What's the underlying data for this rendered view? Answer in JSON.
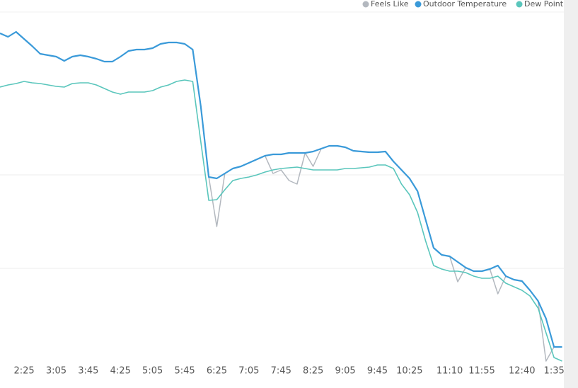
{
  "chart_data": {
    "type": "line",
    "categories": [
      null,
      null,
      null,
      "2:25",
      null,
      null,
      null,
      "3:05",
      null,
      null,
      null,
      "3:45",
      null,
      null,
      null,
      "4:25",
      null,
      null,
      null,
      "5:05",
      null,
      null,
      null,
      "5:45",
      null,
      null,
      null,
      "6:25",
      null,
      null,
      null,
      "7:05",
      null,
      null,
      null,
      "7:45",
      null,
      null,
      null,
      "8:25",
      null,
      null,
      null,
      "9:05",
      null,
      null,
      null,
      "9:45",
      null,
      null,
      null,
      "10:25",
      null,
      null,
      null,
      null,
      "11:10",
      null,
      null,
      null,
      "11:55",
      null,
      null,
      null,
      null,
      "12:40",
      null,
      null,
      null,
      "1:35",
      null
    ],
    "series": [
      {
        "name": "Feels Like",
        "color": "#b3b8bf",
        "values": [
          46.3,
          45.8,
          46.5,
          45.5,
          44.5,
          43.4,
          43.2,
          43.0,
          42.4,
          43.0,
          43.2,
          43.0,
          42.7,
          42.3,
          42.3,
          43.0,
          43.8,
          44.0,
          44.0,
          44.2,
          44.8,
          45.0,
          45.0,
          44.8,
          44.0,
          36.0,
          26.0,
          19.0,
          26.5,
          27.2,
          27.5,
          28.0,
          28.5,
          29.0,
          26.5,
          27.0,
          25.5,
          25.0,
          29.4,
          27.5,
          30.0,
          30.4,
          30.4,
          30.2,
          29.7,
          29.6,
          29.5,
          29.5,
          29.6,
          28.2,
          27.0,
          25.8,
          24.0,
          20.0,
          16.0,
          15.0,
          14.8,
          11.2,
          13.2,
          12.7,
          12.7,
          13.0,
          9.5,
          12.0,
          11.5,
          11.3,
          10.0,
          8.5,
          0.0,
          2.0,
          2.0
        ]
      },
      {
        "name": "Outdoor Temperature",
        "color": "#3a9ad9",
        "values": [
          46.3,
          45.8,
          46.5,
          45.5,
          44.5,
          43.4,
          43.2,
          43.0,
          42.4,
          43.0,
          43.2,
          43.0,
          42.7,
          42.3,
          42.3,
          43.0,
          43.8,
          44.0,
          44.0,
          44.2,
          44.8,
          45.0,
          45.0,
          44.8,
          44.0,
          36.0,
          26.0,
          25.8,
          26.5,
          27.2,
          27.5,
          28.0,
          28.5,
          29.0,
          29.2,
          29.2,
          29.4,
          29.4,
          29.4,
          29.6,
          30.0,
          30.4,
          30.4,
          30.2,
          29.7,
          29.6,
          29.5,
          29.5,
          29.6,
          28.2,
          27.0,
          25.8,
          24.0,
          20.0,
          16.0,
          15.0,
          14.8,
          14.0,
          13.2,
          12.7,
          12.7,
          13.0,
          13.5,
          12.0,
          11.5,
          11.3,
          10.0,
          8.5,
          6.0,
          2.0,
          2.0
        ]
      },
      {
        "name": "Dew Point",
        "color": "#5ac6bc",
        "values": [
          38.7,
          39.0,
          39.2,
          39.5,
          39.3,
          39.2,
          39.0,
          38.8,
          38.7,
          39.2,
          39.3,
          39.3,
          39.0,
          38.5,
          38.0,
          37.7,
          38.0,
          38.0,
          38.0,
          38.2,
          38.7,
          39.0,
          39.5,
          39.7,
          39.5,
          31.0,
          22.7,
          22.8,
          24.2,
          25.5,
          25.8,
          26.0,
          26.3,
          26.7,
          27.0,
          27.2,
          27.3,
          27.4,
          27.2,
          27.0,
          27.0,
          27.0,
          27.0,
          27.2,
          27.2,
          27.3,
          27.4,
          27.7,
          27.7,
          27.2,
          25.0,
          23.5,
          21.0,
          17.0,
          13.5,
          13.0,
          12.7,
          12.7,
          12.5,
          12.0,
          11.7,
          11.7,
          12.0,
          11.0,
          10.5,
          10.0,
          9.2,
          7.5,
          4.0,
          0.5,
          0.0
        ]
      }
    ],
    "ylim": [
      0,
      49.3
    ],
    "yticks": [
      13.1,
      26.3
    ],
    "grid": true,
    "legend": "top-right"
  }
}
